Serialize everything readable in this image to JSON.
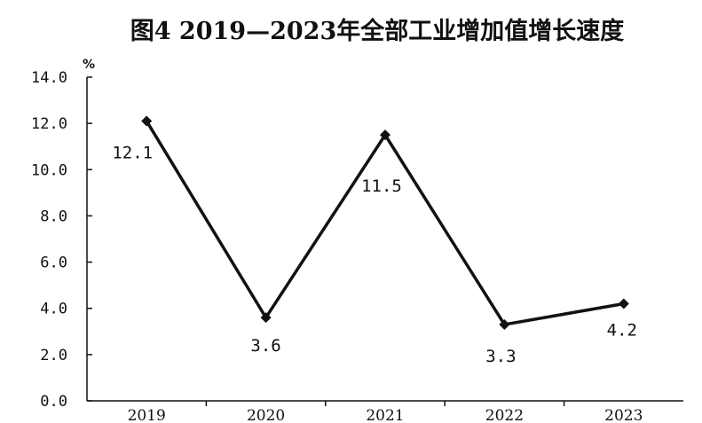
{
  "chart_data": {
    "type": "line",
    "title": "图4  2019—2023年全部工业增加值增长速度",
    "ylabel": "%",
    "xlabel": "",
    "categories": [
      "2019",
      "2020",
      "2021",
      "2022",
      "2023"
    ],
    "series": [
      {
        "values": [
          12.1,
          3.6,
          11.5,
          3.3,
          4.2
        ],
        "color": "#111111"
      }
    ],
    "data_labels": [
      "12.1",
      "3.6",
      "11.5",
      "3.3",
      "4.2"
    ],
    "y_ticks": [
      "0.0",
      "2.0",
      "4.0",
      "6.0",
      "8.0",
      "10.0",
      "12.0",
      "14.0"
    ],
    "ylim": [
      0,
      14
    ],
    "grid": false,
    "legend": "none"
  }
}
